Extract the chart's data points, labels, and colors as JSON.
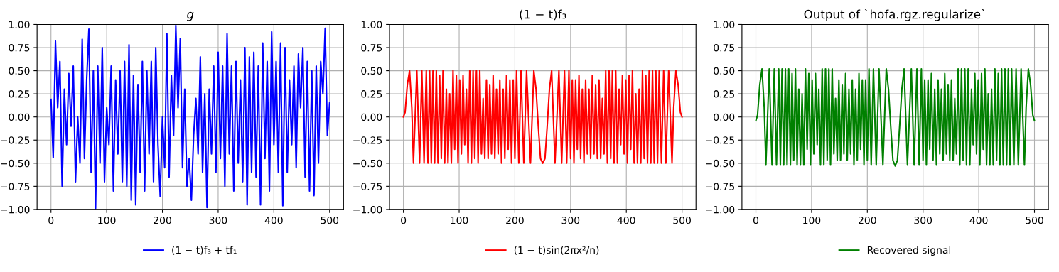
{
  "chart_data": [
    {
      "type": "line",
      "title": "g",
      "xlim": [
        -25,
        525
      ],
      "ylim": [
        -1,
        1
      ],
      "grid": true,
      "legend": "bottom",
      "xticks": [
        0,
        100,
        200,
        300,
        400,
        500
      ],
      "yticks": [
        {
          "value": -1,
          "label": "−1.00"
        },
        {
          "value": -0.75,
          "label": "−0.75"
        },
        {
          "value": -0.5,
          "label": "−0.50"
        },
        {
          "value": -0.25,
          "label": "−0.25"
        },
        {
          "value": 0,
          "label": "0.00"
        },
        {
          "value": 0.25,
          "label": "0.25"
        },
        {
          "value": 0.5,
          "label": "0.50"
        },
        {
          "value": 0.75,
          "label": "0.75"
        },
        {
          "value": 1,
          "label": "1.00"
        }
      ],
      "x": [
        0,
        4,
        8,
        12,
        16,
        20,
        24,
        28,
        32,
        36,
        40,
        44,
        48,
        52,
        56,
        60,
        64,
        68,
        72,
        76,
        80,
        84,
        88,
        92,
        96,
        100,
        104,
        108,
        112,
        116,
        120,
        124,
        128,
        132,
        136,
        140,
        144,
        148,
        152,
        156,
        160,
        164,
        168,
        172,
        176,
        180,
        184,
        188,
        192,
        196,
        200,
        204,
        208,
        212,
        216,
        220,
        224,
        228,
        232,
        236,
        240,
        244,
        248,
        252,
        256,
        260,
        264,
        268,
        272,
        276,
        280,
        284,
        288,
        292,
        296,
        300,
        304,
        308,
        312,
        316,
        320,
        324,
        328,
        332,
        336,
        340,
        344,
        348,
        352,
        356,
        360,
        364,
        368,
        372,
        376,
        380,
        384,
        388,
        392,
        396,
        400,
        404,
        408,
        412,
        416,
        420,
        424,
        428,
        432,
        436,
        440,
        444,
        448,
        452,
        456,
        460,
        464,
        468,
        472,
        476,
        480,
        484,
        488,
        492,
        496,
        500
      ],
      "series": [
        {
          "name": "(1 − t)f₃ + tf₁",
          "color": "#0000ff",
          "values": [
            0.19,
            -0.44,
            0.82,
            0.1,
            0.6,
            -0.75,
            0.3,
            -0.3,
            0.47,
            -0.1,
            0.55,
            -0.7,
            0.0,
            -0.5,
            0.84,
            -0.45,
            0.4,
            0.95,
            -0.6,
            0.5,
            -0.99,
            0.55,
            -0.5,
            0.75,
            -0.7,
            0.1,
            -0.3,
            0.55,
            -0.8,
            0.4,
            -0.4,
            0.5,
            -0.7,
            0.6,
            -0.75,
            0.78,
            -0.9,
            0.45,
            -0.95,
            0.35,
            -0.6,
            0.6,
            -0.8,
            0.5,
            -0.4,
            0.6,
            -0.7,
            0.75,
            -0.3,
            -0.86,
            0.0,
            -0.55,
            0.9,
            -0.65,
            0.45,
            -0.2,
            0.99,
            0.1,
            0.85,
            -0.55,
            0.3,
            -0.75,
            -0.45,
            -0.9,
            -0.2,
            0.2,
            -0.4,
            0.65,
            -0.6,
            0.25,
            -0.98,
            0.3,
            -0.4,
            0.55,
            -0.6,
            0.7,
            -0.45,
            0.55,
            -0.75,
            0.9,
            -0.4,
            0.55,
            -0.8,
            0.6,
            -0.5,
            0.4,
            -0.7,
            0.75,
            -0.95,
            0.65,
            -0.6,
            0.7,
            -0.65,
            0.55,
            -0.95,
            0.8,
            -0.45,
            0.6,
            -0.8,
            0.92,
            -0.3,
            0.6,
            -0.6,
            0.8,
            -0.96,
            0.75,
            -0.6,
            0.4,
            -0.3,
            0.55,
            -0.55,
            0.68,
            0.1,
            0.75,
            -0.65,
            0.6,
            -0.8,
            0.5,
            -0.85,
            0.55,
            -0.5,
            0.6,
            0.25,
            0.96,
            -0.2,
            0.15
          ]
        }
      ]
    },
    {
      "type": "line",
      "title": "(1 − t)f₃",
      "xlim": [
        -25,
        525
      ],
      "ylim": [
        -1,
        1
      ],
      "grid": true,
      "legend": "bottom",
      "xticks": [
        0,
        100,
        200,
        300,
        400,
        500
      ],
      "yticks": [
        {
          "value": -1,
          "label": "−1.00"
        },
        {
          "value": -0.75,
          "label": "−0.75"
        },
        {
          "value": -0.5,
          "label": "−0.50"
        },
        {
          "value": -0.25,
          "label": "−0.25"
        },
        {
          "value": 0,
          "label": "0.00"
        },
        {
          "value": 0.25,
          "label": "0.25"
        },
        {
          "value": 0.5,
          "label": "0.50"
        },
        {
          "value": 0.75,
          "label": "0.75"
        },
        {
          "value": 1,
          "label": "1.00"
        }
      ],
      "x": [
        0,
        3,
        7,
        11,
        15,
        18,
        24,
        29,
        33,
        37,
        41,
        44,
        47,
        50,
        53,
        56,
        59,
        62,
        65,
        68,
        71,
        74,
        77,
        80,
        83,
        86,
        89,
        92,
        95,
        98,
        101,
        104,
        107,
        110,
        113,
        116,
        119,
        122,
        125,
        128,
        131,
        134,
        137,
        140,
        143,
        146,
        149,
        152,
        155,
        158,
        161,
        164,
        167,
        170,
        173,
        176,
        179,
        182,
        185,
        188,
        191,
        194,
        197,
        200,
        203,
        207,
        211,
        216,
        221,
        228,
        234,
        238,
        242,
        246,
        250,
        254,
        258,
        262,
        266,
        272,
        279,
        284,
        289,
        293,
        297,
        300,
        303,
        306,
        309,
        312,
        315,
        318,
        321,
        324,
        327,
        330,
        333,
        336,
        339,
        342,
        345,
        348,
        351,
        354,
        357,
        360,
        363,
        366,
        369,
        372,
        375,
        378,
        381,
        384,
        387,
        390,
        393,
        396,
        399,
        402,
        405,
        408,
        411,
        414,
        417,
        420,
        423,
        426,
        429,
        432,
        435,
        438,
        441,
        444,
        447,
        450,
        453,
        456,
        459,
        463,
        467,
        471,
        476,
        482,
        485,
        489,
        493,
        497,
        500
      ],
      "series": [
        {
          "name": "(1 − t)sin(2πx²/n)",
          "color": "#ff0000",
          "values": [
            0,
            0.05,
            0.35,
            0.5,
            0.1,
            -0.5,
            0.5,
            -0.5,
            0.5,
            -0.5,
            0.5,
            -0.5,
            0.5,
            -0.5,
            0.5,
            -0.5,
            0.5,
            -0.5,
            0.45,
            -0.45,
            0.5,
            -0.5,
            0.3,
            -0.5,
            0.25,
            -0.5,
            0.5,
            -0.35,
            0.45,
            -0.5,
            0.4,
            -0.4,
            0.45,
            -0.3,
            0.3,
            -0.5,
            0.5,
            -0.5,
            0.5,
            -0.45,
            0.5,
            -0.5,
            0.5,
            -0.4,
            0.2,
            -0.45,
            0.4,
            -0.45,
            0.35,
            -0.4,
            0.45,
            -0.45,
            0.3,
            -0.4,
            0.4,
            -0.5,
            0.3,
            -0.45,
            0.45,
            -0.35,
            0.4,
            -0.5,
            0.4,
            -0.45,
            0.5,
            -0.5,
            0.5,
            -0.5,
            0.5,
            -0.5,
            0.5,
            0.3,
            -0.1,
            -0.45,
            -0.5,
            -0.45,
            -0.1,
            0.3,
            0.5,
            -0.5,
            0.5,
            -0.5,
            0.5,
            -0.5,
            0.5,
            -0.45,
            0.4,
            -0.5,
            0.4,
            -0.35,
            0.45,
            -0.45,
            0.3,
            -0.5,
            0.4,
            -0.4,
            0.3,
            -0.45,
            0.45,
            -0.4,
            0.35,
            -0.45,
            0.4,
            -0.45,
            0.2,
            -0.4,
            0.5,
            -0.5,
            0.5,
            -0.45,
            0.5,
            -0.5,
            0.5,
            -0.5,
            0.3,
            -0.3,
            0.45,
            -0.4,
            0.4,
            -0.5,
            0.45,
            -0.35,
            0.5,
            -0.5,
            0.25,
            -0.5,
            0.3,
            -0.5,
            0.5,
            -0.45,
            0.45,
            -0.5,
            0.5,
            -0.5,
            0.5,
            -0.5,
            0.5,
            -0.5,
            0.5,
            -0.5,
            0.5,
            -0.5,
            0.5,
            -0.5,
            0.1,
            0.5,
            0.35,
            0.05,
            0
          ]
        }
      ]
    },
    {
      "type": "line",
      "title": "Output of `hofa.rgz.regularize`",
      "xlim": [
        -25,
        525
      ],
      "ylim": [
        -1,
        1
      ],
      "grid": true,
      "legend": "bottom",
      "xticks": [
        0,
        100,
        200,
        300,
        400,
        500
      ],
      "yticks": [
        {
          "value": -1,
          "label": "−1.00"
        },
        {
          "value": -0.75,
          "label": "−0.75"
        },
        {
          "value": -0.5,
          "label": "−0.50"
        },
        {
          "value": -0.25,
          "label": "−0.25"
        },
        {
          "value": 0,
          "label": "0.00"
        },
        {
          "value": 0.25,
          "label": "0.25"
        },
        {
          "value": 0.5,
          "label": "0.50"
        },
        {
          "value": 0.75,
          "label": "0.75"
        },
        {
          "value": 1,
          "label": "1.00"
        }
      ],
      "x": [
        0,
        3,
        7,
        11,
        15,
        18,
        24,
        29,
        33,
        37,
        41,
        44,
        47,
        50,
        53,
        56,
        59,
        62,
        65,
        68,
        71,
        74,
        77,
        80,
        83,
        86,
        89,
        92,
        95,
        98,
        101,
        104,
        107,
        110,
        113,
        116,
        119,
        122,
        125,
        128,
        131,
        134,
        137,
        140,
        143,
        146,
        149,
        152,
        155,
        158,
        161,
        164,
        167,
        170,
        173,
        176,
        179,
        182,
        185,
        188,
        191,
        194,
        197,
        200,
        203,
        207,
        211,
        216,
        221,
        228,
        234,
        238,
        242,
        246,
        250,
        254,
        258,
        262,
        266,
        272,
        279,
        284,
        289,
        293,
        297,
        300,
        303,
        306,
        309,
        312,
        315,
        318,
        321,
        324,
        327,
        330,
        333,
        336,
        339,
        342,
        345,
        348,
        351,
        354,
        357,
        360,
        363,
        366,
        369,
        372,
        375,
        378,
        381,
        384,
        387,
        390,
        393,
        396,
        399,
        402,
        405,
        408,
        411,
        414,
        417,
        420,
        423,
        426,
        429,
        432,
        435,
        438,
        441,
        444,
        447,
        450,
        453,
        456,
        459,
        463,
        467,
        471,
        476,
        482,
        485,
        489,
        493,
        497,
        500
      ],
      "series": [
        {
          "name": "Recovered signal",
          "color": "#008000",
          "values": [
            -0.04,
            0.02,
            0.35,
            0.52,
            0.1,
            -0.52,
            0.52,
            -0.52,
            0.52,
            -0.52,
            0.52,
            -0.52,
            0.52,
            -0.52,
            0.52,
            -0.52,
            0.52,
            -0.52,
            0.47,
            -0.47,
            0.52,
            -0.52,
            0.3,
            -0.52,
            0.25,
            -0.52,
            0.52,
            -0.35,
            0.47,
            -0.52,
            0.4,
            -0.4,
            0.47,
            -0.3,
            0.3,
            -0.52,
            0.52,
            -0.52,
            0.52,
            -0.47,
            0.52,
            -0.52,
            0.52,
            -0.4,
            0.2,
            -0.47,
            0.4,
            -0.47,
            0.35,
            -0.4,
            0.47,
            -0.47,
            0.3,
            -0.4,
            0.4,
            -0.52,
            0.3,
            -0.47,
            0.47,
            -0.35,
            0.4,
            -0.52,
            0.4,
            -0.47,
            0.52,
            -0.52,
            0.52,
            -0.52,
            0.52,
            -0.52,
            0.52,
            0.3,
            -0.1,
            -0.47,
            -0.53,
            -0.47,
            -0.1,
            0.3,
            0.52,
            -0.52,
            0.52,
            -0.52,
            0.52,
            -0.52,
            0.52,
            -0.47,
            0.4,
            -0.52,
            0.4,
            -0.35,
            0.47,
            -0.47,
            0.3,
            -0.52,
            0.4,
            -0.4,
            0.3,
            -0.47,
            0.47,
            -0.4,
            0.35,
            -0.47,
            0.4,
            -0.47,
            0.2,
            -0.4,
            0.52,
            -0.52,
            0.52,
            -0.47,
            0.52,
            -0.52,
            0.52,
            -0.52,
            0.3,
            -0.3,
            0.47,
            -0.4,
            0.4,
            -0.52,
            0.47,
            -0.35,
            0.52,
            -0.52,
            0.25,
            -0.52,
            0.3,
            -0.52,
            0.52,
            -0.47,
            0.47,
            -0.52,
            0.52,
            -0.52,
            0.52,
            -0.52,
            0.52,
            -0.52,
            0.52,
            -0.52,
            0.52,
            -0.52,
            0.52,
            -0.52,
            0.1,
            0.52,
            0.35,
            0.02,
            -0.04
          ]
        }
      ]
    }
  ]
}
